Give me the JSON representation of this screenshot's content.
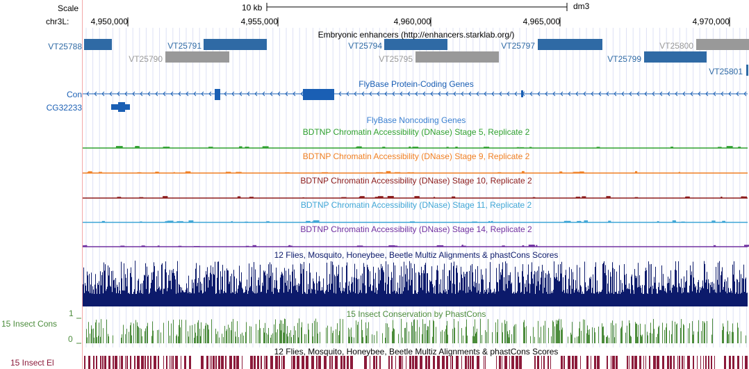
{
  "ruler": {
    "scale_label": "Scale",
    "chrom_label": "chr3L:",
    "scale_bar_label": "10 kb",
    "assembly": "dm3",
    "positions": [
      "4,950,000",
      "4,955,000",
      "4,960,000",
      "4,965,000",
      "4,970,000"
    ]
  },
  "enhancers": {
    "title": "Embryonic enhancers (http://enhancers.starklab.org/)",
    "colors": {
      "dark": "#2f6aa5",
      "gray": "#999999"
    },
    "items": [
      {
        "label": "VT25788",
        "color": "dark"
      },
      {
        "label": "VT25790",
        "color": "gray"
      },
      {
        "label": "VT25791",
        "color": "dark"
      },
      {
        "label": "VT25794",
        "color": "dark"
      },
      {
        "label": "VT25795",
        "color": "gray"
      },
      {
        "label": "VT25797",
        "color": "dark"
      },
      {
        "label": "VT25799",
        "color": "dark"
      },
      {
        "label": "VT25800",
        "color": "gray"
      },
      {
        "label": "VT25801",
        "color": "dark"
      }
    ]
  },
  "genes": {
    "title": "FlyBase Protein-Coding Genes",
    "color": "#1a5fb4",
    "items": [
      {
        "label": "Con"
      },
      {
        "label": "CG32233"
      }
    ]
  },
  "noncoding": {
    "title": "FlyBase Noncoding Genes",
    "color": "#3a7fd0"
  },
  "dnase_tracks": [
    {
      "title": "BDTNP Chromatin Accessibility (DNase) Stage 5, Replicate 2",
      "color": "#2fa02f"
    },
    {
      "title": "BDTNP Chromatin Accessibility (DNase) Stage 9, Replicate 2",
      "color": "#f07f22"
    },
    {
      "title": "BDTNP Chromatin Accessibility (DNase) Stage 10, Replicate 2",
      "color": "#8b1a1a"
    },
    {
      "title": "BDTNP Chromatin Accessibility (DNase) Stage 11, Replicate 2",
      "color": "#3fa6d6"
    },
    {
      "title": "BDTNP Chromatin Accessibility (DNase) Stage 14, Replicate 2",
      "color": "#7030a0"
    }
  ],
  "multiz": {
    "title": "12 Flies, Mosquito, Honeybee, Beetle Multiz Alignments & phastCons Scores",
    "color": "#0c1a6b"
  },
  "conservation": {
    "title": "15 Insect Conservation by PhastCons",
    "side_label": "15 Insect Cons",
    "ymax_label": "1",
    "ymin_label": "0",
    "color": "#4c8c3c"
  },
  "multiz2": {
    "title": "12 Flies, Mosquito, Honeybee, Beetle Multiz Alignments & phastCons Scores",
    "side_label": "15 Insect El",
    "color": "#8b1a3a"
  }
}
